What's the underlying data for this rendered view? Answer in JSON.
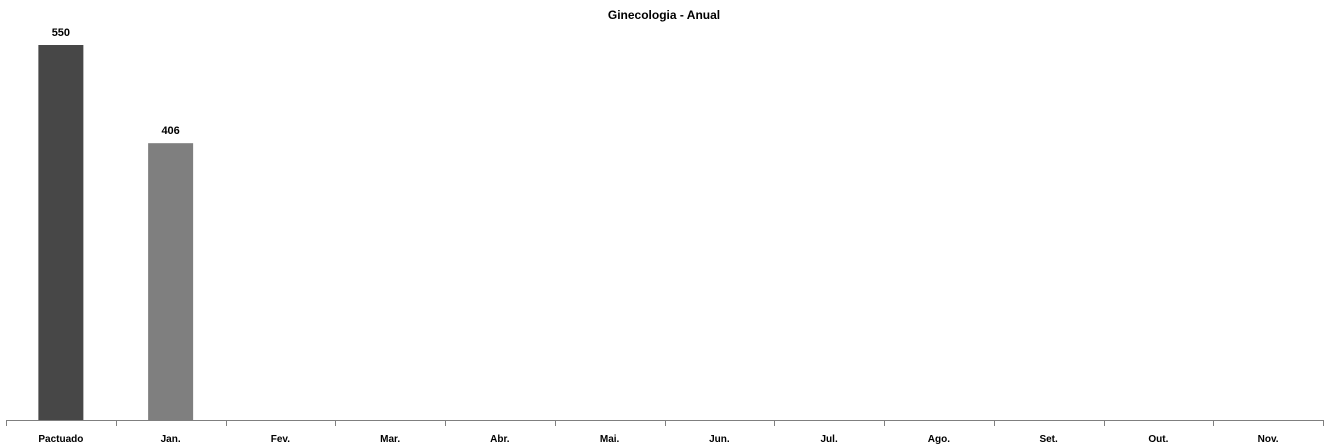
{
  "chart_data": {
    "type": "bar",
    "title": "Ginecologia - Anual",
    "xlabel": "",
    "ylabel": "",
    "categories": [
      "Pactuado",
      "Jan.",
      "Fev.",
      "Mar.",
      "Abr.",
      "Mai.",
      "Jun.",
      "Jul.",
      "Ago.",
      "Set.",
      "Out.",
      "Nov."
    ],
    "values": [
      550,
      406,
      null,
      null,
      null,
      null,
      null,
      null,
      null,
      null,
      null,
      null
    ],
    "data_labels": [
      "550",
      "406",
      "",
      "",
      "",
      "",
      "",
      "",
      "",
      "",
      "",
      ""
    ],
    "bar_colors": [
      "#474747",
      "#7f7f7f",
      "#7f7f7f",
      "#7f7f7f",
      "#7f7f7f",
      "#7f7f7f",
      "#7f7f7f",
      "#7f7f7f",
      "#7f7f7f",
      "#7f7f7f",
      "#7f7f7f",
      "#7f7f7f"
    ],
    "ylim": [
      0,
      550
    ],
    "grid": false,
    "legend": "none"
  }
}
